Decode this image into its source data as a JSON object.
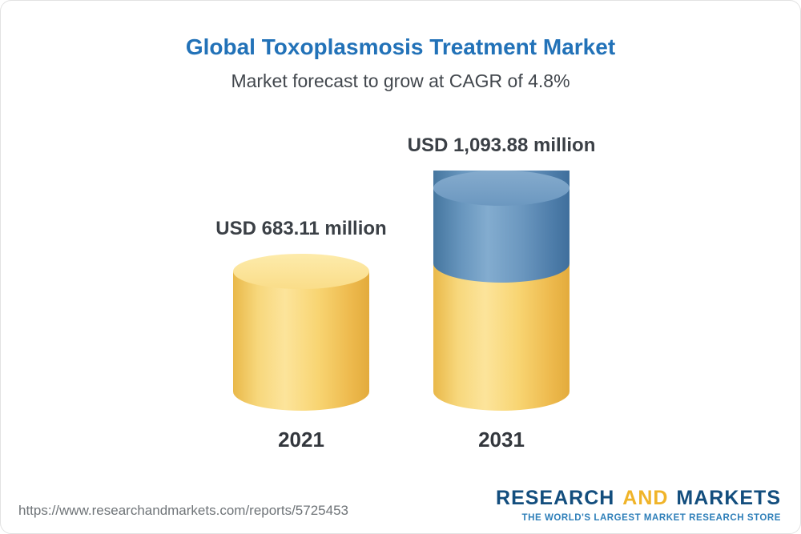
{
  "chart_data": {
    "type": "bar",
    "subtype": "3d-cylinder",
    "title": "Global Toxoplasmosis Treatment Market",
    "subtitle": "Market forecast to grow at CAGR of 4.8%",
    "cagr_percent": 4.8,
    "unit": "USD million",
    "categories": [
      "2021",
      "2031"
    ],
    "values": [
      683.11,
      1093.88
    ],
    "value_labels": [
      "USD 683.11 million",
      "USD 1,093.88 million"
    ],
    "legend": "none",
    "axes_visible": false,
    "layout_hint": "2031 cylinder shows growth as a blue segment stacked on the yellow base",
    "colors": {
      "title": "#2272b8",
      "bar_yellow": "#f6cf71",
      "bar_yellow_top": "#fbe193",
      "bar_blue": "#5d8cb6",
      "bar_blue_top": "#7aa3c8"
    }
  },
  "footer": {
    "url": "https://www.researchandmarkets.com/reports/5725453",
    "logo": {
      "word1": "RESEARCH",
      "word2": "AND",
      "word3": "MARKETS",
      "tagline": "THE WORLD'S LARGEST MARKET RESEARCH STORE"
    }
  }
}
